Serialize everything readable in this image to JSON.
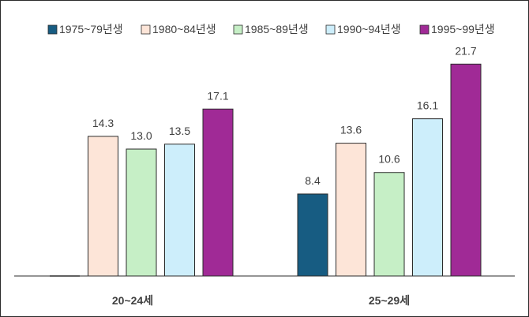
{
  "chart_data": {
    "type": "bar",
    "categories": [
      "20~24세",
      "25~29세"
    ],
    "series": [
      {
        "name": "1975~79년생",
        "color": "#175c82",
        "values": [
          null,
          8.4
        ]
      },
      {
        "name": "1980~84년생",
        "color": "#fde5d8",
        "values": [
          14.3,
          13.6
        ]
      },
      {
        "name": "1985~89년생",
        "color": "#c6efc6",
        "values": [
          13.0,
          10.6
        ]
      },
      {
        "name": "1990~94년생",
        "color": "#cdeefb",
        "values": [
          13.5,
          16.1
        ]
      },
      {
        "name": "1995~99년생",
        "color": "#a02a96",
        "values": [
          17.1,
          21.7
        ]
      }
    ],
    "ylim": [
      0,
      23.5
    ],
    "grid": false,
    "legend": "top"
  }
}
